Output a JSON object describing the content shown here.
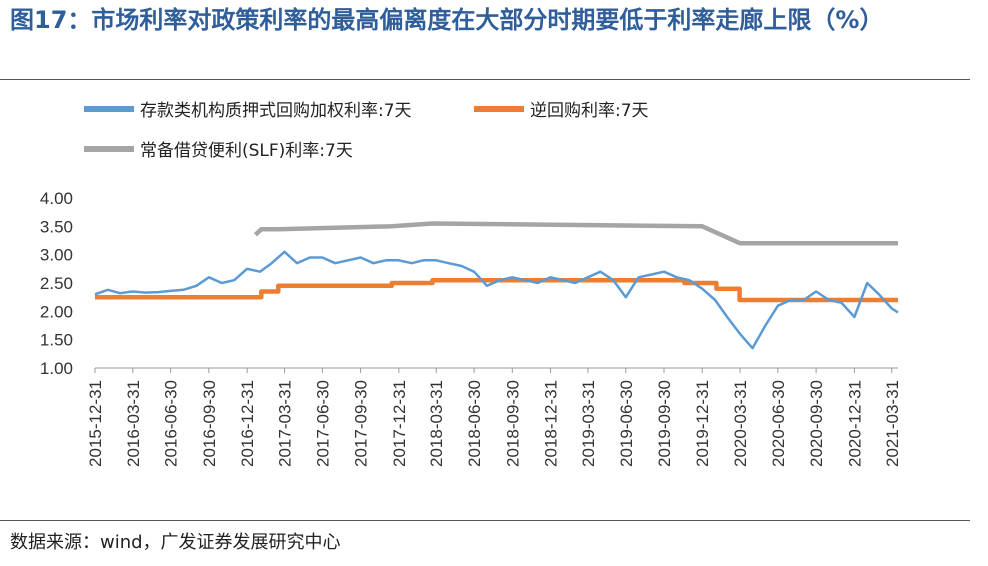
{
  "header": {
    "figure_label": "图17：",
    "title": "市场利率对政策利率的最高偏离度在大部分时期要低于利率走廊上限（%）"
  },
  "footer": {
    "source": "数据来源：wind，广发证券发展研究中心"
  },
  "chart_data": {
    "type": "line",
    "ylim": [
      1.0,
      4.0
    ],
    "yticks": [
      "4.00",
      "3.50",
      "3.00",
      "2.50",
      "2.00",
      "1.50",
      "1.00"
    ],
    "xticks": [
      "2015-12-31",
      "2016-03-31",
      "2016-06-30",
      "2016-09-30",
      "2016-12-31",
      "2017-03-31",
      "2017-06-30",
      "2017-09-30",
      "2017-12-31",
      "2018-03-31",
      "2018-06-30",
      "2018-09-30",
      "2018-12-31",
      "2019-03-31",
      "2019-06-30",
      "2019-09-30",
      "2019-12-31",
      "2020-03-31",
      "2020-06-30",
      "2020-09-30",
      "2020-12-31",
      "2021-03-31"
    ],
    "xlim": [
      "2015-12-31",
      "2021-04-15"
    ],
    "series": [
      {
        "name": "存款类机构质押式回购加权利率:7天",
        "color": "#5b9bd5",
        "points": [
          [
            "2015-12-31",
            2.3
          ],
          [
            "2016-01-31",
            2.38
          ],
          [
            "2016-02-29",
            2.32
          ],
          [
            "2016-03-31",
            2.35
          ],
          [
            "2016-04-30",
            2.33
          ],
          [
            "2016-05-31",
            2.34
          ],
          [
            "2016-06-30",
            2.36
          ],
          [
            "2016-07-31",
            2.38
          ],
          [
            "2016-08-31",
            2.45
          ],
          [
            "2016-09-30",
            2.6
          ],
          [
            "2016-10-31",
            2.5
          ],
          [
            "2016-11-30",
            2.55
          ],
          [
            "2016-12-31",
            2.75
          ],
          [
            "2017-01-31",
            2.7
          ],
          [
            "2017-02-28",
            2.85
          ],
          [
            "2017-03-31",
            3.05
          ],
          [
            "2017-04-30",
            2.85
          ],
          [
            "2017-05-31",
            2.95
          ],
          [
            "2017-06-30",
            2.95
          ],
          [
            "2017-07-31",
            2.85
          ],
          [
            "2017-08-31",
            2.9
          ],
          [
            "2017-09-30",
            2.95
          ],
          [
            "2017-10-31",
            2.85
          ],
          [
            "2017-11-30",
            2.9
          ],
          [
            "2017-12-31",
            2.9
          ],
          [
            "2018-01-31",
            2.85
          ],
          [
            "2018-02-28",
            2.9
          ],
          [
            "2018-03-31",
            2.9
          ],
          [
            "2018-04-30",
            2.85
          ],
          [
            "2018-05-31",
            2.8
          ],
          [
            "2018-06-30",
            2.7
          ],
          [
            "2018-07-31",
            2.45
          ],
          [
            "2018-08-31",
            2.55
          ],
          [
            "2018-09-30",
            2.6
          ],
          [
            "2018-10-31",
            2.55
          ],
          [
            "2018-11-30",
            2.5
          ],
          [
            "2018-12-31",
            2.6
          ],
          [
            "2019-01-31",
            2.55
          ],
          [
            "2019-02-28",
            2.5
          ],
          [
            "2019-03-31",
            2.6
          ],
          [
            "2019-04-30",
            2.7
          ],
          [
            "2019-05-31",
            2.55
          ],
          [
            "2019-06-30",
            2.25
          ],
          [
            "2019-07-31",
            2.6
          ],
          [
            "2019-08-31",
            2.65
          ],
          [
            "2019-09-30",
            2.7
          ],
          [
            "2019-10-31",
            2.6
          ],
          [
            "2019-11-30",
            2.55
          ],
          [
            "2019-12-31",
            2.4
          ],
          [
            "2020-01-31",
            2.2
          ],
          [
            "2020-02-29",
            1.9
          ],
          [
            "2020-03-31",
            1.6
          ],
          [
            "2020-04-30",
            1.35
          ],
          [
            "2020-05-31",
            1.75
          ],
          [
            "2020-06-30",
            2.1
          ],
          [
            "2020-07-31",
            2.2
          ],
          [
            "2020-08-31",
            2.2
          ],
          [
            "2020-09-30",
            2.35
          ],
          [
            "2020-10-31",
            2.2
          ],
          [
            "2020-11-30",
            2.15
          ],
          [
            "2020-12-31",
            1.9
          ],
          [
            "2021-01-31",
            2.5
          ],
          [
            "2021-02-28",
            2.3
          ],
          [
            "2021-03-31",
            2.05
          ],
          [
            "2021-04-15",
            1.98
          ]
        ]
      },
      {
        "name": "逆回购利率:7天",
        "color": "#ed7d31",
        "points": [
          [
            "2015-12-31",
            2.25
          ],
          [
            "2017-01-20",
            2.25
          ],
          [
            "2017-02-03",
            2.35
          ],
          [
            "2017-03-16",
            2.45
          ],
          [
            "2017-12-14",
            2.5
          ],
          [
            "2018-03-22",
            2.55
          ],
          [
            "2019-11-18",
            2.5
          ],
          [
            "2020-02-03",
            2.4
          ],
          [
            "2020-03-30",
            2.2
          ],
          [
            "2021-04-15",
            2.2
          ]
        ]
      },
      {
        "name": "常备借贷便利(SLF)利率:7天",
        "color": "#a5a5a5",
        "points": [
          [
            "2017-01-20",
            3.35
          ],
          [
            "2017-02-03",
            3.45
          ],
          [
            "2017-03-16",
            3.45
          ],
          [
            "2017-12-14",
            3.5
          ],
          [
            "2018-03-22",
            3.55
          ],
          [
            "2019-12-31",
            3.5
          ],
          [
            "2020-03-31",
            3.2
          ],
          [
            "2021-04-15",
            3.2
          ]
        ]
      }
    ]
  }
}
